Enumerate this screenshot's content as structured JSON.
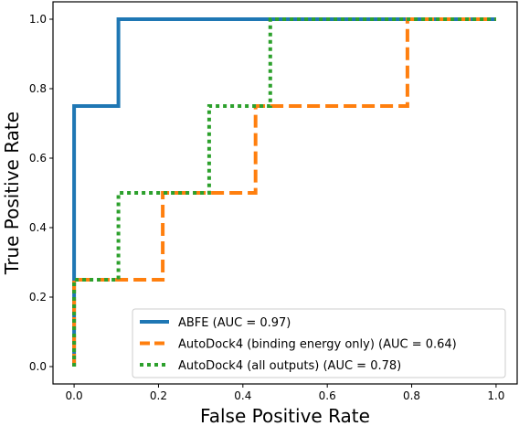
{
  "chart_data": {
    "type": "line",
    "title": "",
    "xlabel": "False Positive Rate",
    "ylabel": "True Positive Rate",
    "xlim": [
      -0.05,
      1.05
    ],
    "ylim": [
      -0.05,
      1.05
    ],
    "xticks": [
      "0.0",
      "0.2",
      "0.4",
      "0.6",
      "0.8",
      "1.0"
    ],
    "yticks": [
      "0.0",
      "0.2",
      "0.4",
      "0.6",
      "0.8",
      "1.0"
    ],
    "grid": false,
    "legend_position": "lower-right",
    "series": [
      {
        "name": "ABFE (AUC = 0.97)",
        "color": "#1f77b4",
        "style": "solid",
        "x": [
          0.0,
          0.0,
          0.0,
          0.105,
          0.105,
          1.0
        ],
        "y": [
          0.0,
          0.25,
          0.75,
          0.75,
          1.0,
          1.0
        ]
      },
      {
        "name": "AutoDock4 (binding energy only) (AUC = 0.64)",
        "color": "#ff7f0e",
        "style": "dashed",
        "x": [
          0.0,
          0.0,
          0.0,
          0.21,
          0.21,
          0.43,
          0.43,
          0.79,
          0.79,
          1.0
        ],
        "y": [
          0.0,
          0.0,
          0.25,
          0.25,
          0.5,
          0.5,
          0.75,
          0.75,
          1.0,
          1.0
        ]
      },
      {
        "name": "AutoDock4 (all outputs) (AUC = 0.78)",
        "color": "#2ca02c",
        "style": "dotted",
        "x": [
          0.0,
          0.0,
          0.105,
          0.105,
          0.32,
          0.32,
          0.465,
          0.465,
          1.0
        ],
        "y": [
          0.0,
          0.25,
          0.25,
          0.5,
          0.5,
          0.75,
          0.75,
          1.0,
          1.0
        ]
      }
    ]
  }
}
